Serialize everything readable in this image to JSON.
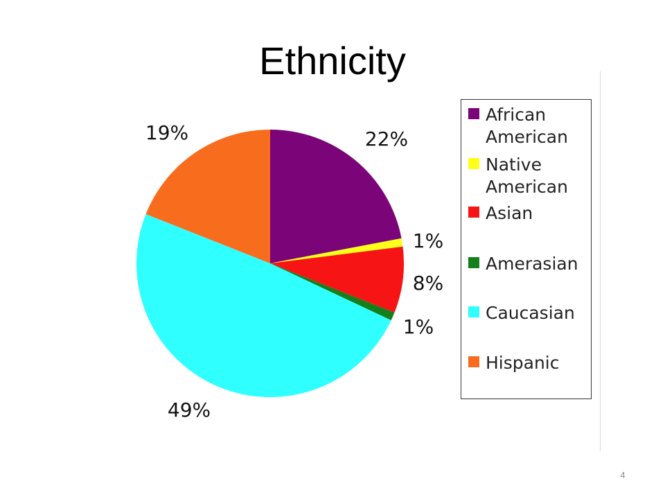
{
  "slide": {
    "title": "Ethnicity",
    "page_number": "4"
  },
  "chart_data": {
    "type": "pie",
    "title": "Ethnicity",
    "legend_position": "right",
    "slices": [
      {
        "name": "African American",
        "value": 22,
        "label": "22%",
        "color": "#7B0479"
      },
      {
        "name": "Native American",
        "value": 1,
        "label": "1%",
        "color": "#FFFF1A"
      },
      {
        "name": "Asian",
        "value": 8,
        "label": "8%",
        "color": "#F71414"
      },
      {
        "name": "Amerasian",
        "value": 1,
        "label": "1%",
        "color": "#157F1B"
      },
      {
        "name": "Caucasian",
        "value": 49,
        "label": "49%",
        "color": "#2FFFFF"
      },
      {
        "name": "Hispanic",
        "value": 19,
        "label": "19%",
        "color": "#F86D1D"
      }
    ]
  },
  "legend": {
    "items": [
      {
        "label": "African\nAmerican",
        "color": "#7B0479"
      },
      {
        "label": "Native\nAmerican",
        "color": "#FFFF1A"
      },
      {
        "label": "Asian",
        "color": "#F71414"
      },
      {
        "label": "Amerasian",
        "color": "#157F1B"
      },
      {
        "label": "Caucasian",
        "color": "#2FFFFF"
      },
      {
        "label": "Hispanic",
        "color": "#F86D1D"
      }
    ]
  }
}
